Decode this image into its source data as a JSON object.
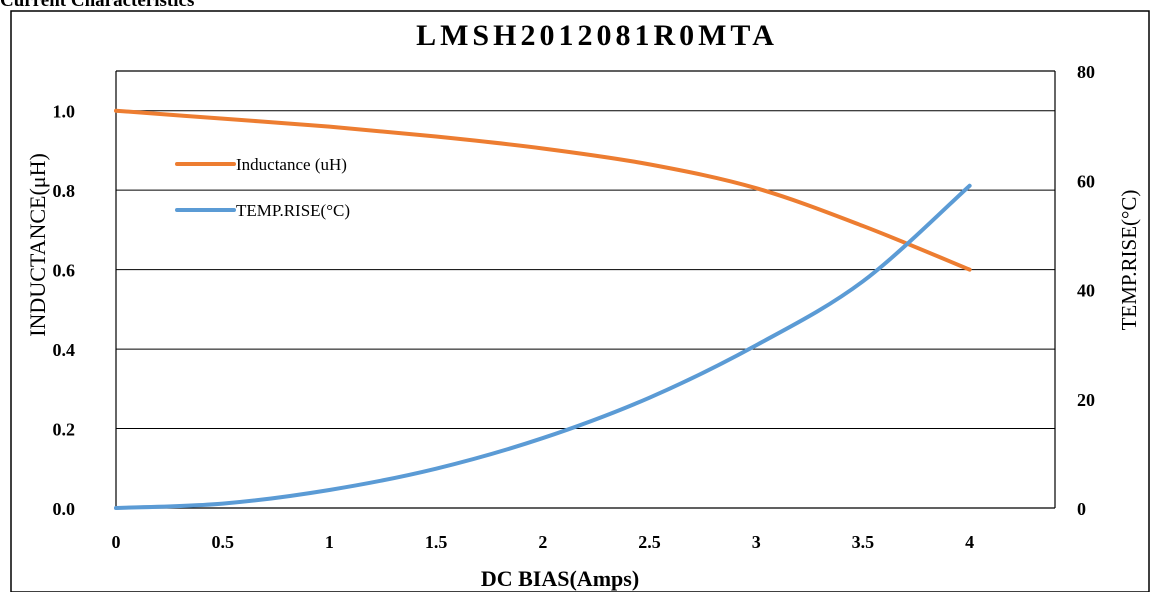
{
  "page": {
    "section_heading": "Current Characteristics"
  },
  "chart_data": {
    "type": "line",
    "title": "LMSH2012081R0MTA",
    "xlabel": "DC BIAS(Amps)",
    "ylabel_left": "INDUCTANCE(μH)",
    "ylabel_right": "TEMP.RISE(°C)",
    "xlim": [
      0,
      4.4
    ],
    "ylim_left": [
      0,
      1.1
    ],
    "ylim_right": [
      0,
      80
    ],
    "x_ticks": [
      0,
      0.5,
      1,
      1.5,
      2,
      2.5,
      3,
      3.5,
      4
    ],
    "x_tick_labels": [
      "0",
      "0.5",
      "1",
      "1.5",
      "2",
      "2.5",
      "3",
      "3.5",
      "4"
    ],
    "y_left_ticks": [
      0,
      0.2,
      0.4,
      0.6,
      0.8,
      1.0
    ],
    "y_left_tick_labels": [
      "0.0",
      "0.2",
      "0.4",
      "0.6",
      "0.8",
      "1.0"
    ],
    "y_right_ticks": [
      0,
      20,
      40,
      60,
      80
    ],
    "y_right_tick_labels": [
      "0",
      "20",
      "40",
      "60",
      "80"
    ],
    "grid": "horizontal",
    "legend_position": "top-left",
    "series": [
      {
        "name": "Inductance (uH)",
        "axis": "left",
        "color": "#ed7d31",
        "x": [
          0,
          0.5,
          1,
          1.5,
          2,
          2.5,
          3,
          3.5,
          4
        ],
        "y": [
          1.0,
          0.98,
          0.96,
          0.935,
          0.905,
          0.865,
          0.805,
          0.71,
          0.6
        ]
      },
      {
        "name": "TEMP.RISE(°C)",
        "axis": "right",
        "color": "#5b9bd5",
        "x": [
          0,
          0.5,
          1,
          1.5,
          2,
          2.5,
          3,
          3.5,
          4
        ],
        "y": [
          0,
          0.8,
          3.3,
          7.2,
          12.8,
          20.2,
          29.8,
          41.5,
          59
        ]
      }
    ]
  }
}
